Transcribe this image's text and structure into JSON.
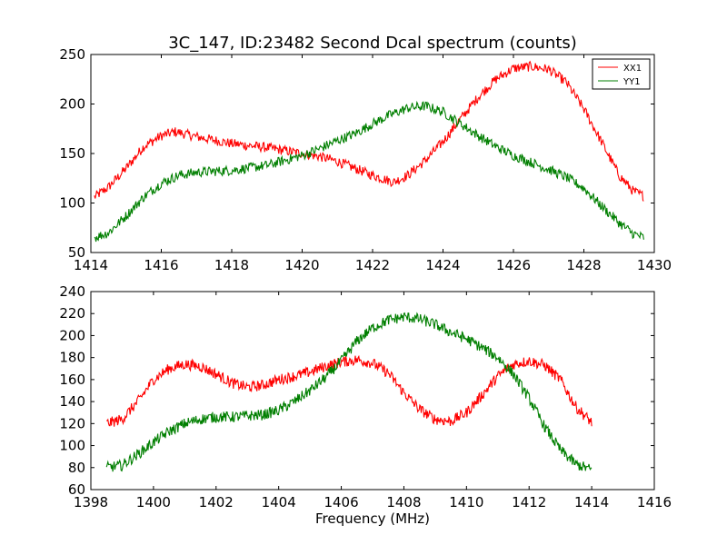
{
  "figure": {
    "title": "3C_147, ID:23482 Second Dcal spectrum (counts)"
  },
  "colors": {
    "XX1": "#ff0000",
    "YY1": "#007f00"
  },
  "chart_data": [
    {
      "type": "line",
      "title": "3C_147, ID:23482 Second Dcal spectrum (counts)",
      "xlabel": "",
      "ylabel": "",
      "xlim": [
        1414,
        1430
      ],
      "ylim": [
        50,
        250
      ],
      "xticks": [
        1414,
        1416,
        1418,
        1420,
        1422,
        1424,
        1426,
        1428,
        1430
      ],
      "yticks": [
        50,
        100,
        150,
        200,
        250
      ],
      "legend": {
        "placement": "top-right",
        "entries": [
          "XX1",
          "YY1"
        ]
      },
      "series": [
        {
          "name": "XX1",
          "color": "#ff0000",
          "x": [
            1414.1,
            1414.5,
            1415.0,
            1415.5,
            1416.0,
            1416.4,
            1417.0,
            1418.0,
            1419.0,
            1420.0,
            1420.5,
            1421.0,
            1421.5,
            1422.0,
            1422.6,
            1423.0,
            1423.5,
            1424.0,
            1424.5,
            1425.0,
            1425.5,
            1426.0,
            1426.5,
            1427.0,
            1427.5,
            1428.0,
            1428.5,
            1429.0,
            1429.4,
            1429.7
          ],
          "values": [
            106,
            116,
            135,
            157,
            168,
            172,
            167,
            160,
            156,
            150,
            147,
            142,
            135,
            128,
            121,
            128,
            143,
            162,
            185,
            207,
            225,
            236,
            238,
            235,
            222,
            195,
            162,
            128,
            112,
            107
          ]
        },
        {
          "name": "YY1",
          "color": "#007f00",
          "x": [
            1414.1,
            1414.5,
            1415.0,
            1415.5,
            1416.0,
            1416.5,
            1417.0,
            1418.0,
            1419.0,
            1420.0,
            1420.5,
            1421.0,
            1421.5,
            1422.0,
            1422.5,
            1423.0,
            1423.5,
            1424.0,
            1424.5,
            1425.0,
            1425.5,
            1426.0,
            1426.5,
            1427.0,
            1427.5,
            1428.0,
            1428.5,
            1429.0,
            1429.4,
            1429.7
          ],
          "values": [
            65,
            70,
            87,
            106,
            120,
            128,
            131,
            133,
            138,
            148,
            155,
            163,
            170,
            180,
            189,
            196,
            198,
            192,
            180,
            168,
            157,
            148,
            141,
            134,
            126,
            115,
            97,
            80,
            69,
            65
          ]
        }
      ]
    },
    {
      "type": "line",
      "title": "",
      "xlabel": "Frequency (MHz)",
      "ylabel": "",
      "xlim": [
        1398,
        1416
      ],
      "ylim": [
        60,
        240
      ],
      "xticks": [
        1398,
        1400,
        1402,
        1404,
        1406,
        1408,
        1410,
        1412,
        1414,
        1416
      ],
      "yticks": [
        60,
        80,
        100,
        120,
        140,
        160,
        180,
        200,
        220,
        240
      ],
      "series": [
        {
          "name": "XX1",
          "color": "#ff0000",
          "x": [
            1398.5,
            1399.0,
            1399.5,
            1400.0,
            1400.5,
            1401.0,
            1401.5,
            1402.0,
            1402.5,
            1403.0,
            1403.5,
            1404.0,
            1404.5,
            1405.0,
            1405.5,
            1406.0,
            1406.5,
            1407.0,
            1407.5,
            1408.0,
            1408.5,
            1409.0,
            1409.5,
            1410.0,
            1410.5,
            1411.0,
            1411.5,
            1412.0,
            1412.5,
            1413.0,
            1413.5,
            1414.0
          ],
          "values": [
            120,
            124,
            140,
            160,
            170,
            174,
            172,
            165,
            157,
            153,
            155,
            160,
            163,
            167,
            172,
            176,
            178,
            175,
            166,
            148,
            133,
            124,
            122,
            130,
            146,
            163,
            174,
            177,
            173,
            160,
            135,
            121
          ]
        },
        {
          "name": "YY1",
          "color": "#007f00",
          "x": [
            1398.5,
            1399.0,
            1399.5,
            1400.0,
            1400.5,
            1401.0,
            1401.5,
            1402.0,
            1402.5,
            1403.0,
            1403.5,
            1404.0,
            1404.5,
            1405.0,
            1405.5,
            1406.0,
            1406.5,
            1407.0,
            1407.5,
            1408.0,
            1408.5,
            1409.0,
            1409.5,
            1410.0,
            1410.5,
            1411.0,
            1411.5,
            1412.0,
            1412.5,
            1413.0,
            1413.5,
            1414.0
          ],
          "values": [
            80,
            82,
            92,
            103,
            113,
            120,
            124,
            126,
            126,
            127,
            128,
            132,
            140,
            150,
            162,
            177,
            195,
            207,
            214,
            217,
            215,
            210,
            203,
            197,
            189,
            180,
            165,
            143,
            117,
            96,
            83,
            78
          ]
        }
      ]
    }
  ]
}
